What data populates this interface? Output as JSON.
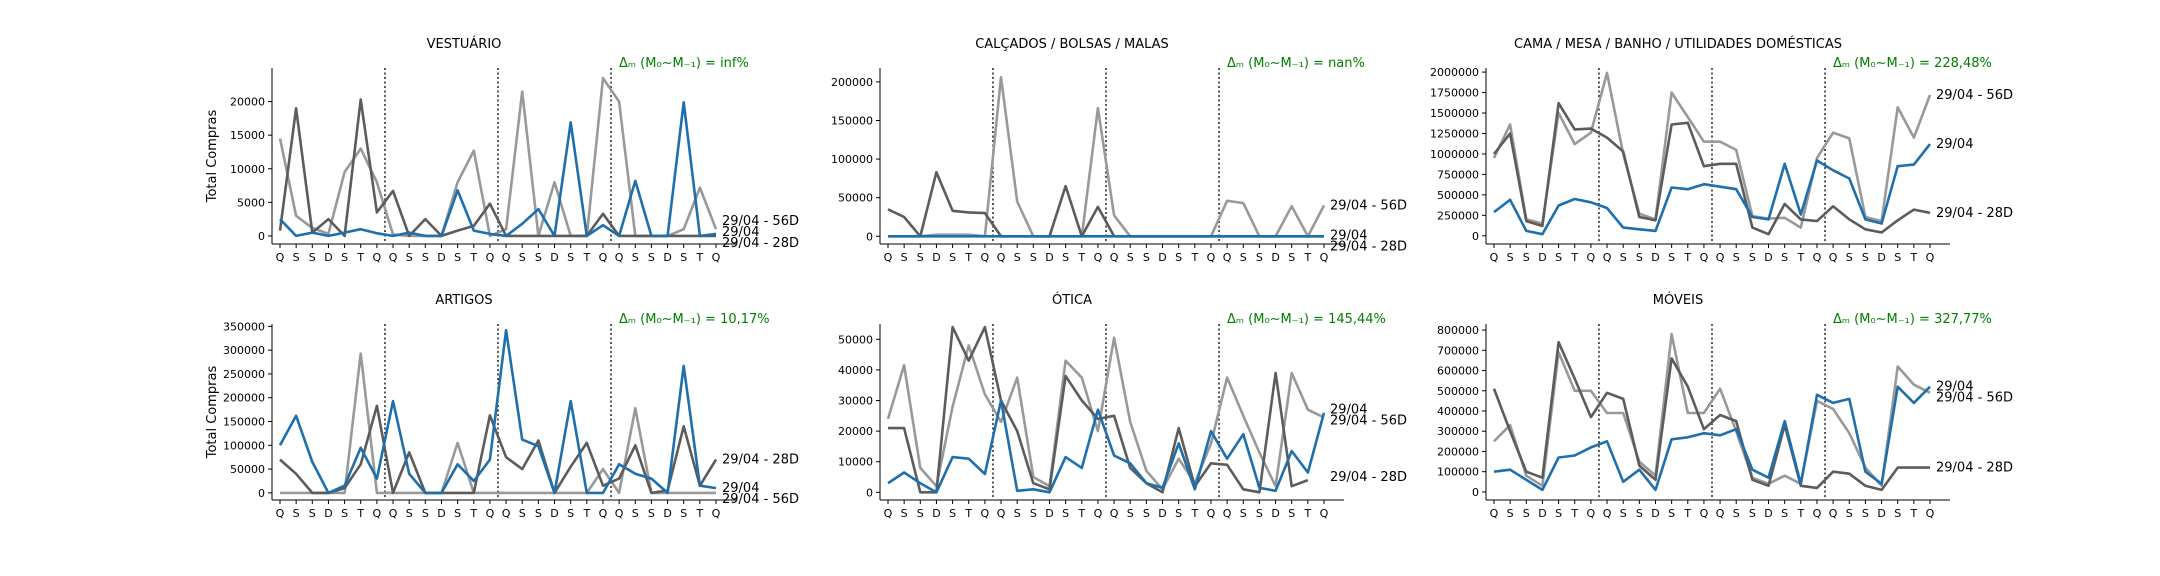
{
  "figure": {
    "y_label_text": "Total Compras",
    "colors": {
      "current": "#1f6fad",
      "m56": "#999999",
      "m28": "#5c5c5c",
      "delta": "#008000",
      "boundary": "#000000"
    }
  },
  "chart_data": [
    {
      "type": "line",
      "title": "VESTUÁRIO",
      "ylabel": "Total Compras",
      "ylim": [
        -1200,
        25000
      ],
      "yticks": [
        0,
        5000,
        10000,
        15000,
        20000
      ],
      "categories": [
        "Q",
        "S",
        "S",
        "D",
        "S",
        "T",
        "Q",
        "Q",
        "S",
        "S",
        "D",
        "S",
        "T",
        "Q",
        "Q",
        "S",
        "S",
        "D",
        "S",
        "T",
        "Q",
        "Q",
        "S",
        "S",
        "D",
        "S",
        "T",
        "Q"
      ],
      "week_boundaries": [
        6.5,
        13.5,
        20.5
      ],
      "delta_label": "Δₘ (M₀~M₋₁) = inf%",
      "series": [
        {
          "name": "29/04 - 56D",
          "color": "#999999",
          "values": [
            14500,
            3000,
            1200,
            300,
            9500,
            13000,
            8000,
            200,
            0,
            0,
            0,
            8000,
            12700,
            0,
            1000,
            21500,
            0,
            8000,
            0,
            0,
            23500,
            20000,
            0,
            0,
            0,
            1000,
            7200,
            1000
          ]
        },
        {
          "name": "29/04 - 28D",
          "color": "#5c5c5c",
          "values": [
            800,
            19000,
            500,
            2500,
            0,
            20300,
            3500,
            6700,
            0,
            2500,
            0,
            800,
            1500,
            4800,
            0,
            0,
            0,
            0,
            0,
            0,
            3300,
            0,
            0,
            0,
            0,
            0,
            0,
            0
          ]
        },
        {
          "name": "29/04",
          "color": "#1f6fad",
          "values": [
            2500,
            0,
            500,
            0,
            500,
            1000,
            400,
            0,
            500,
            0,
            0,
            6800,
            800,
            300,
            0,
            1800,
            4000,
            0,
            16900,
            0,
            1600,
            0,
            8200,
            0,
            0,
            19900,
            0,
            300
          ]
        }
      ],
      "end_labels": [
        {
          "text": "29/04 - 56D",
          "value": 2200
        },
        {
          "text": "29/04",
          "value": 600
        },
        {
          "text": "29/04 - 28D",
          "value": 200
        }
      ]
    },
    {
      "type": "line",
      "title": "CALÇADOS / BOLSAS / MALAS",
      "ylabel": "",
      "ylim": [
        -10000,
        218000
      ],
      "yticks": [
        0,
        50000,
        100000,
        150000,
        200000
      ],
      "categories": [
        "Q",
        "S",
        "S",
        "D",
        "S",
        "T",
        "Q",
        "Q",
        "S",
        "S",
        "D",
        "S",
        "T",
        "Q",
        "Q",
        "S",
        "S",
        "D",
        "S",
        "T",
        "Q",
        "Q",
        "S",
        "S",
        "D",
        "S",
        "T",
        "Q"
      ],
      "week_boundaries": [
        6.5,
        13.5,
        20.5
      ],
      "delta_label": "Δₘ (M₀~M₋₁) = nan%",
      "series": [
        {
          "name": "29/04 - 56D",
          "color": "#999999",
          "values": [
            0,
            0,
            0,
            2000,
            2000,
            2000,
            0,
            206000,
            45000,
            0,
            0,
            0,
            0,
            166000,
            27000,
            0,
            0,
            0,
            0,
            0,
            0,
            46000,
            43000,
            0,
            0,
            39000,
            0,
            40000
          ]
        },
        {
          "name": "29/04 - 28D",
          "color": "#5c5c5c",
          "values": [
            35000,
            25000,
            0,
            83000,
            33000,
            31000,
            30000,
            0,
            0,
            0,
            0,
            65000,
            0,
            38000,
            0,
            0,
            0,
            0,
            0,
            0,
            0,
            0,
            0,
            0,
            0,
            0,
            0,
            0
          ]
        },
        {
          "name": "29/04",
          "color": "#1f6fad",
          "values": [
            0,
            0,
            0,
            0,
            0,
            0,
            0,
            0,
            0,
            0,
            0,
            0,
            0,
            0,
            0,
            0,
            0,
            0,
            0,
            0,
            0,
            0,
            0,
            0,
            0,
            0,
            0,
            0
          ]
        }
      ],
      "end_labels": [
        {
          "text": "29/04 - 56D",
          "value": 40000
        },
        {
          "text": "29/04",
          "value": 1000
        },
        {
          "text": "29/04 - 28D",
          "value": -1000
        }
      ]
    },
    {
      "type": "line",
      "title": "CAMA / MESA / BANHO / UTILIDADES DOMÉSTICAS",
      "ylabel": "",
      "ylim": [
        -100000,
        2050000
      ],
      "yticks": [
        0,
        250000,
        500000,
        750000,
        1000000,
        1250000,
        1500000,
        1750000,
        2000000
      ],
      "categories": [
        "Q",
        "S",
        "S",
        "D",
        "S",
        "T",
        "Q",
        "Q",
        "S",
        "S",
        "D",
        "S",
        "T",
        "Q",
        "Q",
        "S",
        "S",
        "D",
        "S",
        "T",
        "Q",
        "Q",
        "S",
        "S",
        "D",
        "S",
        "T",
        "Q"
      ],
      "week_boundaries": [
        6.5,
        13.5,
        20.5
      ],
      "delta_label": "Δₘ (M₀~M₋₁) = 228,48%",
      "series": [
        {
          "name": "29/04 - 56D",
          "color": "#999999",
          "values": [
            950000,
            1360000,
            200000,
            150000,
            1500000,
            1120000,
            1260000,
            1990000,
            1000000,
            270000,
            200000,
            1750000,
            1450000,
            1150000,
            1150000,
            1050000,
            240000,
            210000,
            220000,
            100000,
            950000,
            1260000,
            1190000,
            230000,
            180000,
            1570000,
            1200000,
            1720000
          ]
        },
        {
          "name": "29/04 - 28D",
          "color": "#5c5c5c",
          "values": [
            1000000,
            1250000,
            180000,
            120000,
            1620000,
            1300000,
            1310000,
            1200000,
            1030000,
            230000,
            190000,
            1360000,
            1380000,
            850000,
            880000,
            880000,
            100000,
            20000,
            390000,
            200000,
            180000,
            360000,
            200000,
            80000,
            40000,
            190000,
            320000,
            280000
          ]
        },
        {
          "name": "29/04",
          "color": "#1f6fad",
          "values": [
            290000,
            440000,
            60000,
            20000,
            370000,
            450000,
            410000,
            340000,
            100000,
            80000,
            60000,
            590000,
            570000,
            630000,
            600000,
            570000,
            230000,
            200000,
            880000,
            260000,
            920000,
            800000,
            700000,
            200000,
            150000,
            850000,
            870000,
            1120000
          ]
        }
      ],
      "end_labels": [
        {
          "text": "29/04 - 56D",
          "value": 1720000
        },
        {
          "text": "29/04",
          "value": 1120000
        },
        {
          "text": "29/04 - 28D",
          "value": 280000
        }
      ]
    },
    {
      "type": "line",
      "title": "ARTIGOS",
      "ylabel": "Total Compras",
      "ylim": [
        -15000,
        355000
      ],
      "yticks": [
        0,
        50000,
        100000,
        150000,
        200000,
        250000,
        300000,
        350000
      ],
      "categories": [
        "Q",
        "S",
        "S",
        "D",
        "S",
        "T",
        "Q",
        "Q",
        "S",
        "S",
        "D",
        "S",
        "T",
        "Q",
        "Q",
        "S",
        "S",
        "D",
        "S",
        "T",
        "Q",
        "Q",
        "S",
        "S",
        "D",
        "S",
        "T",
        "Q"
      ],
      "week_boundaries": [
        6.5,
        13.5,
        20.5
      ],
      "delta_label": "Δₘ (M₀~M₋₁) = 10,17%",
      "series": [
        {
          "name": "29/04 - 56D",
          "color": "#999999",
          "values": [
            0,
            0,
            0,
            0,
            0,
            293000,
            0,
            0,
            0,
            0,
            0,
            105000,
            0,
            0,
            0,
            0,
            0,
            0,
            0,
            0,
            50000,
            0,
            178000,
            0,
            0,
            0,
            0,
            0
          ]
        },
        {
          "name": "29/04 - 28D",
          "color": "#5c5c5c",
          "values": [
            70000,
            40000,
            0,
            0,
            10000,
            60000,
            183000,
            0,
            85000,
            0,
            0,
            0,
            0,
            163000,
            75000,
            50000,
            110000,
            0,
            55000,
            105000,
            15000,
            30000,
            100000,
            0,
            5000,
            140000,
            15000,
            70000
          ]
        },
        {
          "name": "29/04",
          "color": "#1f6fad",
          "values": [
            100000,
            162000,
            65000,
            0,
            15000,
            95000,
            30000,
            193000,
            40000,
            0,
            0,
            60000,
            25000,
            70000,
            342000,
            112000,
            98000,
            0,
            193000,
            0,
            0,
            60000,
            40000,
            30000,
            0,
            267000,
            15000,
            10000
          ]
        }
      ],
      "end_labels": [
        {
          "text": "29/04 - 28D",
          "value": 70000
        },
        {
          "text": "29/04",
          "value": 10000
        },
        {
          "text": "29/04 - 56D",
          "value": 0
        }
      ]
    },
    {
      "type": "line",
      "title": "ÓTICA",
      "ylabel": "",
      "ylim": [
        -2500,
        55000
      ],
      "yticks": [
        0,
        10000,
        20000,
        30000,
        40000,
        50000
      ],
      "categories": [
        "Q",
        "S",
        "S",
        "D",
        "S",
        "T",
        "Q",
        "Q",
        "S",
        "S",
        "D",
        "S",
        "T",
        "Q",
        "Q",
        "S",
        "S",
        "D",
        "S",
        "T",
        "Q",
        "Q",
        "S",
        "S",
        "D",
        "S",
        "T",
        "Q"
      ],
      "week_boundaries": [
        6.5,
        13.5,
        20.5
      ],
      "delta_label": "Δₘ (M₀~M₋₁) = 145,44%",
      "series": [
        {
          "name": "29/04 - 56D",
          "color": "#999999",
          "values": [
            24000,
            41500,
            8000,
            2000,
            28000,
            48000,
            32000,
            23000,
            37500,
            5000,
            2000,
            43000,
            37500,
            20000,
            50500,
            23000,
            7000,
            1000,
            11000,
            3000,
            16000,
            37500,
            25000,
            13000,
            2000,
            39000,
            27000,
            24500
          ]
        },
        {
          "name": "29/04 - 28D",
          "color": "#5c5c5c",
          "values": [
            21000,
            21000,
            0,
            0,
            54000,
            43000,
            54000,
            30000,
            20000,
            3000,
            1000,
            38000,
            30000,
            24000,
            25000,
            8000,
            3000,
            0,
            21000,
            2000,
            9500,
            9000,
            1000,
            0,
            39000,
            2000,
            4000,
            null
          ]
        },
        {
          "name": "29/04",
          "color": "#1f6fad",
          "values": [
            3000,
            6500,
            3000,
            0,
            11500,
            11000,
            6000,
            30000,
            500,
            1000,
            0,
            11500,
            8000,
            27000,
            12000,
            9500,
            3000,
            1500,
            16000,
            1000,
            20000,
            11000,
            19000,
            1500,
            500,
            13500,
            6500,
            26000
          ]
        }
      ],
      "end_labels": [
        {
          "text": "29/04",
          "value": 27000
        },
        {
          "text": "29/04 - 56D",
          "value": 24500
        },
        {
          "text": "29/04 - 28D",
          "value": 5000
        }
      ]
    },
    {
      "type": "line",
      "title": "MÓVEIS",
      "ylabel": "",
      "ylim": [
        -40000,
        830000
      ],
      "yticks": [
        0,
        100000,
        200000,
        300000,
        400000,
        500000,
        600000,
        700000,
        800000
      ],
      "categories": [
        "Q",
        "S",
        "S",
        "D",
        "S",
        "T",
        "Q",
        "Q",
        "S",
        "S",
        "D",
        "S",
        "T",
        "Q",
        "Q",
        "S",
        "S",
        "D",
        "S",
        "T",
        "Q",
        "Q",
        "S",
        "S",
        "D",
        "S",
        "T",
        "Q"
      ],
      "week_boundaries": [
        6.5,
        13.5,
        20.5
      ],
      "delta_label": "Δₘ (M₀~M₋₁) = 327,77%",
      "series": [
        {
          "name": "29/04 - 56D",
          "color": "#999999",
          "values": [
            250000,
            330000,
            80000,
            30000,
            690000,
            500000,
            500000,
            390000,
            390000,
            150000,
            80000,
            780000,
            390000,
            390000,
            510000,
            300000,
            70000,
            40000,
            80000,
            40000,
            450000,
            410000,
            290000,
            120000,
            30000,
            620000,
            530000,
            490000
          ]
        },
        {
          "name": "29/04 - 28D",
          "color": "#5c5c5c",
          "values": [
            510000,
            300000,
            100000,
            70000,
            740000,
            560000,
            370000,
            490000,
            460000,
            130000,
            60000,
            660000,
            520000,
            310000,
            380000,
            350000,
            60000,
            30000,
            330000,
            30000,
            20000,
            100000,
            90000,
            30000,
            10000,
            120000,
            120000,
            120000
          ]
        },
        {
          "name": "29/04",
          "color": "#1f6fad",
          "values": [
            100000,
            110000,
            60000,
            10000,
            170000,
            180000,
            220000,
            250000,
            50000,
            110000,
            10000,
            260000,
            270000,
            290000,
            280000,
            310000,
            110000,
            70000,
            350000,
            40000,
            480000,
            440000,
            460000,
            100000,
            40000,
            520000,
            440000,
            520000
          ]
        }
      ],
      "end_labels": [
        {
          "text": "29/04",
          "value": 520000
        },
        {
          "text": "29/04 - 56D",
          "value": 490000
        },
        {
          "text": "29/04 - 28D",
          "value": 120000
        }
      ]
    }
  ]
}
